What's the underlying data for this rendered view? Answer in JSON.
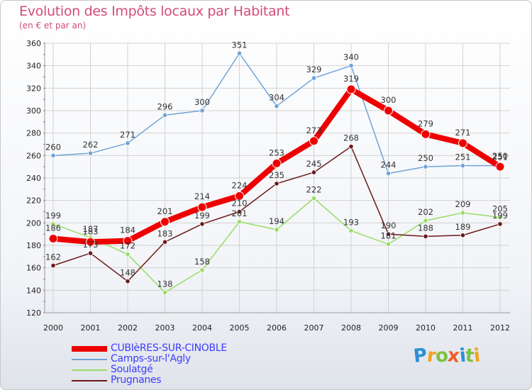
{
  "chart_data": {
    "type": "line",
    "title": "Evolution des Impôts locaux par Habitant",
    "subtitle": "(en € et par an)",
    "xlabel": "",
    "ylabel": "",
    "ylim": [
      120,
      360
    ],
    "yticks": [
      120,
      140,
      160,
      180,
      200,
      220,
      240,
      260,
      280,
      300,
      320,
      340,
      360
    ],
    "categories": [
      "2000",
      "2001",
      "2002",
      "2003",
      "2004",
      "2005",
      "2006",
      "2007",
      "2008",
      "2009",
      "2010",
      "2011",
      "2012"
    ],
    "grid": true,
    "legend_position": "bottom-left",
    "series": [
      {
        "name": "CUBIèRES-SUR-CINOBLE",
        "color": "#ee0000",
        "values": [
          186,
          183,
          184,
          201,
          214,
          224,
          253,
          273,
          319,
          300,
          279,
          271,
          250
        ],
        "labels": [
          "186",
          "183",
          "184",
          "201",
          "214",
          "224",
          "253",
          "273",
          "319",
          "300",
          "279",
          "271",
          "250"
        ]
      },
      {
        "name": "Camps-sur-l'Agly",
        "color": "#6fa4d8",
        "values": [
          260,
          262,
          271,
          296,
          300,
          351,
          304,
          329,
          340,
          244,
          250,
          251,
          251
        ],
        "labels": [
          "260",
          "262",
          "271",
          "296",
          "300",
          "351",
          "304",
          "329",
          "340",
          "244",
          "250",
          "251",
          "251"
        ]
      },
      {
        "name": "Soulatgé",
        "color": "#99dd66",
        "values": [
          199,
          187,
          172,
          138,
          158,
          201,
          194,
          222,
          193,
          181,
          202,
          209,
          205
        ],
        "labels": [
          "199",
          "187",
          "172",
          "138",
          "158",
          "201",
          "194",
          "222",
          "193",
          "181",
          "202",
          "209",
          "205"
        ]
      },
      {
        "name": "Prugnanes",
        "color": "#6b1a1a",
        "values": [
          162,
          173,
          148,
          183,
          199,
          210,
          235,
          245,
          268,
          190,
          188,
          189,
          199
        ],
        "labels": [
          "162",
          "173",
          "148",
          "183",
          "199",
          "210",
          "235",
          "245",
          "268",
          "190",
          "188",
          "189",
          "199"
        ]
      }
    ]
  },
  "logo": {
    "letters": [
      "P",
      "r",
      "o",
      "x",
      "i",
      "t",
      "i"
    ],
    "colors": [
      "#2b8fd6",
      "#f4a11a",
      "#7cc242",
      "#f15a24",
      "#2b8fd6",
      "#7cc242",
      "#f4a11a"
    ]
  }
}
